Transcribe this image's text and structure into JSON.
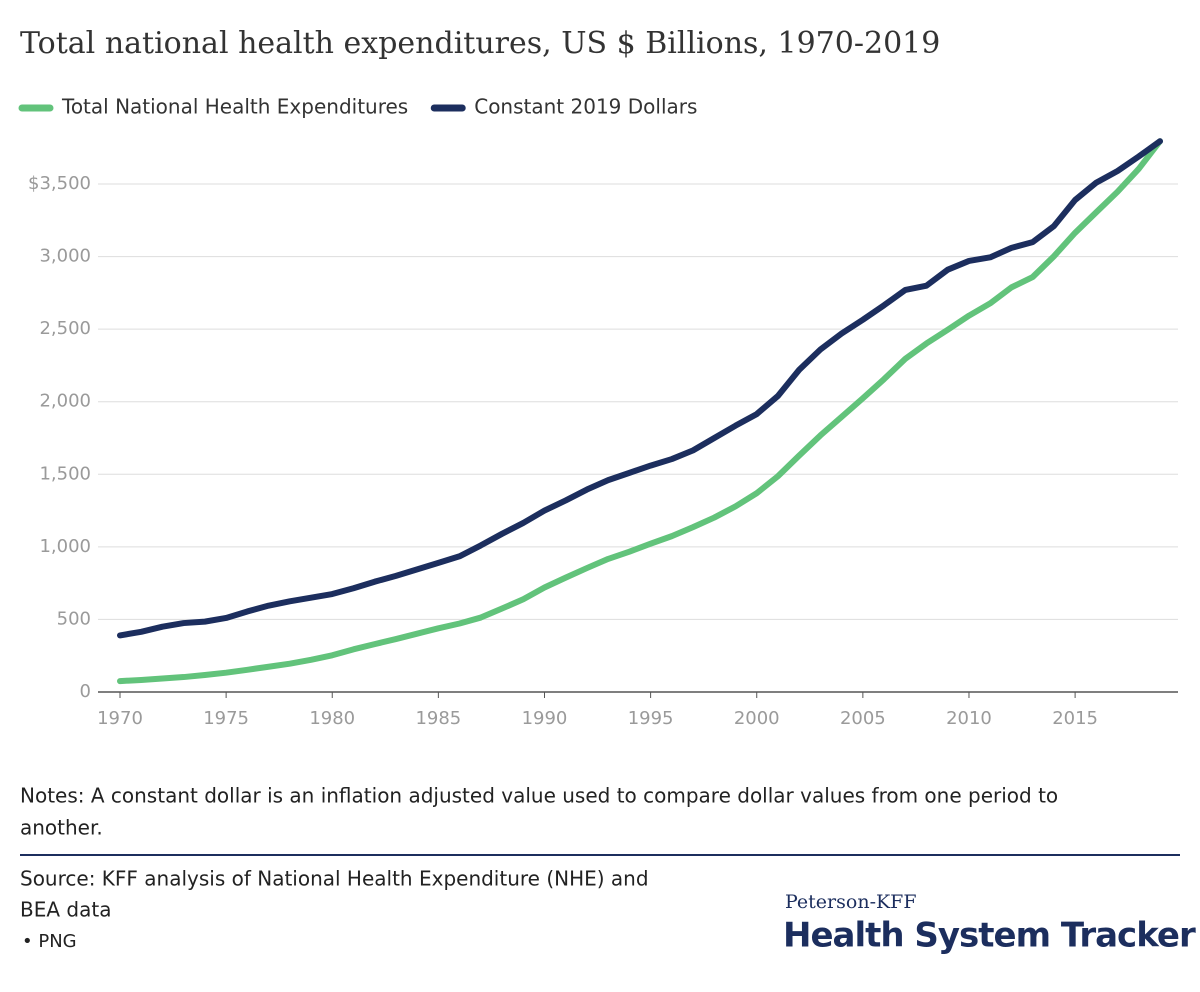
{
  "chart_data": {
    "type": "line",
    "title": "Total national health expenditures, US $ Billions, 1970-2019",
    "x": [
      1970,
      1971,
      1972,
      1973,
      1974,
      1975,
      1976,
      1977,
      1978,
      1979,
      1980,
      1981,
      1982,
      1983,
      1984,
      1985,
      1986,
      1987,
      1988,
      1989,
      1990,
      1991,
      1992,
      1993,
      1994,
      1995,
      1996,
      1997,
      1998,
      1999,
      2000,
      2001,
      2002,
      2003,
      2004,
      2005,
      2006,
      2007,
      2008,
      2009,
      2010,
      2011,
      2012,
      2013,
      2014,
      2015,
      2016,
      2017,
      2018,
      2019
    ],
    "series": [
      {
        "name": "Total National Health Expenditures",
        "color": "#62c37b",
        "values": [
          75,
          83,
          93,
          103,
          117,
          133,
          153,
          174,
          195,
          222,
          253,
          294,
          330,
          365,
          402,
          439,
          472,
          513,
          575,
          639,
          720,
          788,
          854,
          917,
          967,
          1022,
          1074,
          1136,
          1202,
          1279,
          1370,
          1487,
          1629,
          1768,
          1896,
          2024,
          2156,
          2296,
          2402,
          2496,
          2593,
          2678,
          2788,
          2859,
          3002,
          3164,
          3306,
          3447,
          3605,
          3795
        ]
      },
      {
        "name": "Constant 2019 Dollars",
        "color": "#1c2e5e",
        "values": [
          390,
          415,
          450,
          475,
          485,
          510,
          555,
          595,
          625,
          650,
          675,
          715,
          760,
          800,
          845,
          890,
          935,
          1010,
          1090,
          1165,
          1250,
          1320,
          1395,
          1460,
          1510,
          1560,
          1605,
          1665,
          1750,
          1835,
          1915,
          2040,
          2220,
          2360,
          2470,
          2565,
          2665,
          2770,
          2800,
          2910,
          2970,
          2995,
          3060,
          3100,
          3210,
          3390,
          3510,
          3590,
          3690,
          3795
        ]
      }
    ],
    "xlim": [
      1970,
      2019
    ],
    "xticks": [
      1970,
      1975,
      1980,
      1985,
      1990,
      1995,
      2000,
      2005,
      2010,
      2015
    ],
    "ylim": [
      0,
      3800
    ],
    "yticks": [
      0,
      500,
      {
        "value": 1000,
        "label": "1,000"
      },
      {
        "value": 1500,
        "label": "1,500"
      },
      {
        "value": 2000,
        "label": "2,000"
      },
      {
        "value": 2500,
        "label": "2,500"
      },
      {
        "value": 3000,
        "label": "3,000"
      },
      {
        "value": 3500,
        "label": "$3,500"
      }
    ],
    "grid": true
  },
  "notes": [
    "Notes: A constant dollar is an inflation adjusted value used to compare dollar values from one period to",
    "another."
  ],
  "source": [
    "Source: KFF analysis of National Health Expenditure (NHE) and",
    "BEA data"
  ],
  "download": "• PNG",
  "logo": {
    "top": "Peterson-KFF",
    "main": "Health System Tracker"
  }
}
